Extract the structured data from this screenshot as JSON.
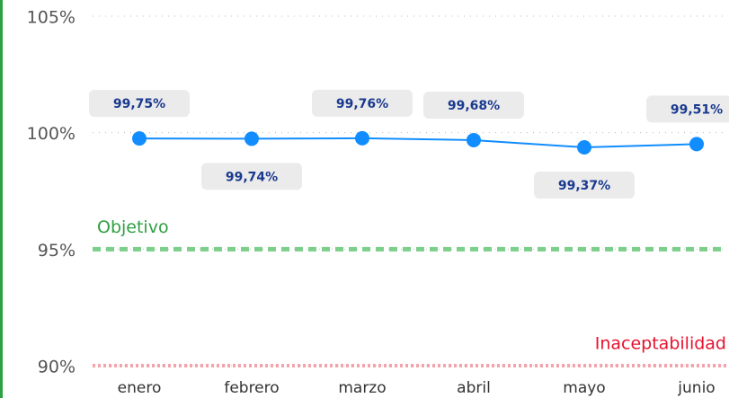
{
  "chart_data": {
    "type": "line",
    "categories": [
      "enero",
      "febrero",
      "marzo",
      "abril",
      "mayo",
      "junio"
    ],
    "series": [
      {
        "color": "#118dff",
        "values": [
          99.75,
          99.74,
          99.76,
          99.68,
          99.37,
          99.51
        ],
        "value_labels": [
          "99,75%",
          "99,74%",
          "99,76%",
          "99,68%",
          "99,37%",
          "99,51%"
        ]
      }
    ],
    "ylim": [
      90,
      105
    ],
    "yticks": [
      {
        "value": 90,
        "label": "90%"
      },
      {
        "value": 95,
        "label": "95%"
      },
      {
        "value": 100,
        "label": "100%"
      },
      {
        "value": 105,
        "label": "105%"
      }
    ],
    "grid": true,
    "reference_lines": [
      {
        "label": "Objetivo",
        "value": 95,
        "color": "#7ccf8a",
        "label_color": "#2ea043"
      },
      {
        "label": "Inaceptabilidad",
        "value": 90,
        "color": "#f4a3ad",
        "label_color": "#e8112d"
      }
    ]
  }
}
